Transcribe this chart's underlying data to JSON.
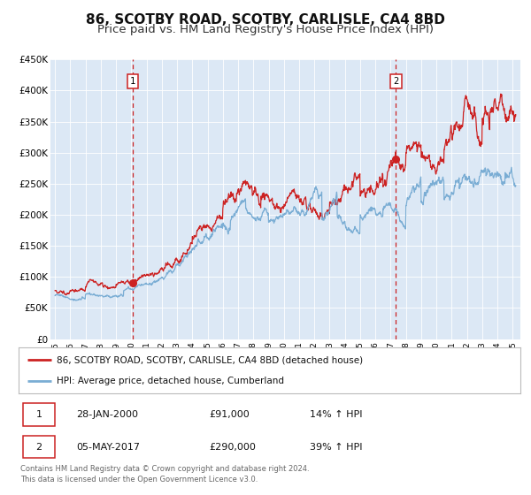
{
  "title": "86, SCOTBY ROAD, SCOTBY, CARLISLE, CA4 8BD",
  "subtitle": "Price paid vs. HM Land Registry's House Price Index (HPI)",
  "xlim_start": 1994.7,
  "xlim_end": 2025.5,
  "ylim_bottom": 0,
  "ylim_top": 450000,
  "yticks": [
    0,
    50000,
    100000,
    150000,
    200000,
    250000,
    300000,
    350000,
    400000,
    450000
  ],
  "ytick_labels": [
    "£0",
    "£50K",
    "£100K",
    "£150K",
    "£200K",
    "£250K",
    "£300K",
    "£350K",
    "£400K",
    "£450K"
  ],
  "sale1_date": 2000.08,
  "sale1_price": 91000,
  "sale1_label": "1",
  "sale2_date": 2017.34,
  "sale2_price": 290000,
  "sale2_label": "2",
  "red_line_color": "#cc2222",
  "blue_line_color": "#7aadd4",
  "vline_color": "#cc2222",
  "bg_color": "#dce8f5",
  "legend_label_red": "86, SCOTBY ROAD, SCOTBY, CARLISLE, CA4 8BD (detached house)",
  "legend_label_blue": "HPI: Average price, detached house, Cumberland",
  "table_row1": [
    "1",
    "28-JAN-2000",
    "£91,000",
    "14% ↑ HPI"
  ],
  "table_row2": [
    "2",
    "05-MAY-2017",
    "£290,000",
    "39% ↑ HPI"
  ],
  "footnote1": "Contains HM Land Registry data © Crown copyright and database right 2024.",
  "footnote2": "This data is licensed under the Open Government Licence v3.0.",
  "title_fontsize": 11,
  "subtitle_fontsize": 9.5
}
